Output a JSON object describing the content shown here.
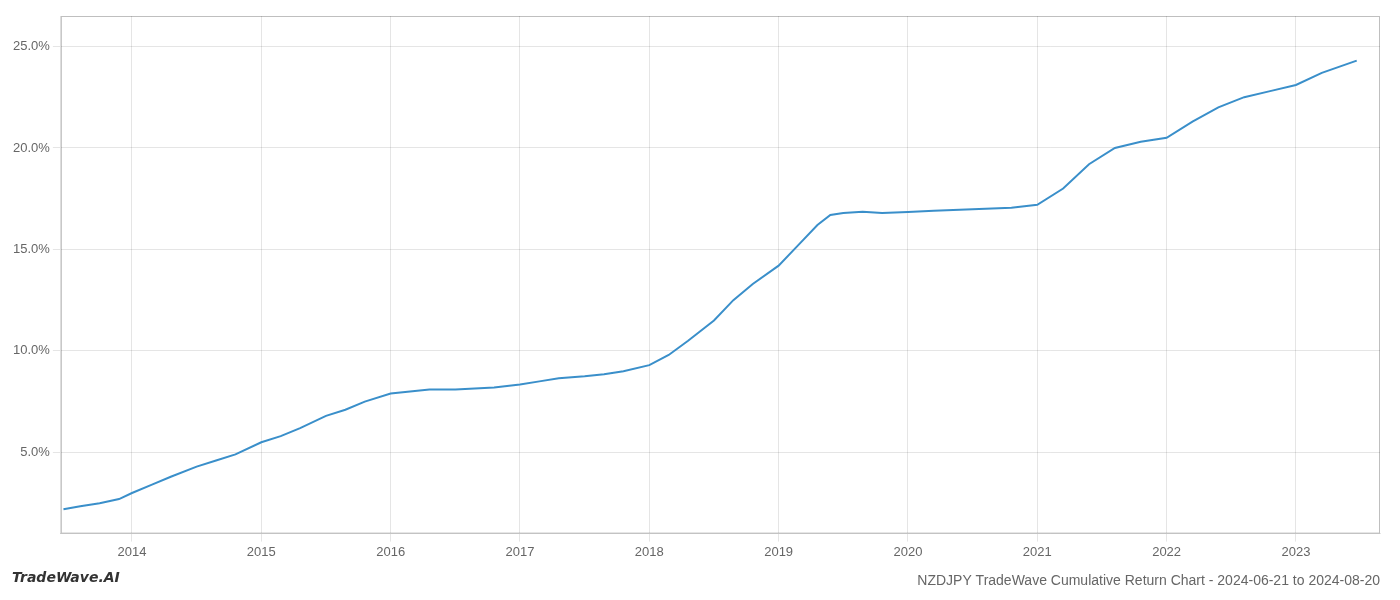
{
  "chart_data": {
    "type": "line",
    "title": "NZDJPY TradeWave Cumulative Return Chart - 2024-06-21 to 2024-08-20",
    "annotations": [
      "TradeWave.AI"
    ],
    "color": "#3a8fca",
    "x": [
      2013.47,
      2013.6,
      2013.75,
      2013.9,
      2014.0,
      2014.15,
      2014.3,
      2014.5,
      2014.65,
      2014.8,
      2015.0,
      2015.15,
      2015.3,
      2015.5,
      2015.65,
      2015.8,
      2016.0,
      2016.15,
      2016.3,
      2016.5,
      2016.65,
      2016.8,
      2017.0,
      2017.15,
      2017.3,
      2017.5,
      2017.65,
      2017.8,
      2018.0,
      2018.15,
      2018.3,
      2018.5,
      2018.65,
      2018.8,
      2019.0,
      2019.15,
      2019.3,
      2019.4,
      2019.5,
      2019.65,
      2019.8,
      2020.0,
      2020.2,
      2020.4,
      2020.6,
      2020.8,
      2021.0,
      2021.2,
      2021.4,
      2021.6,
      2021.8,
      2022.0,
      2022.2,
      2022.4,
      2022.6,
      2022.8,
      2023.0,
      2023.2,
      2023.47
    ],
    "values": [
      2.2,
      2.35,
      2.5,
      2.7,
      3.0,
      3.4,
      3.8,
      4.3,
      4.6,
      4.9,
      5.5,
      5.8,
      6.2,
      6.8,
      7.1,
      7.5,
      7.9,
      8.0,
      8.1,
      8.1,
      8.15,
      8.2,
      8.35,
      8.5,
      8.65,
      8.75,
      8.85,
      9.0,
      9.3,
      9.8,
      10.5,
      11.5,
      12.5,
      13.3,
      14.2,
      15.2,
      16.2,
      16.7,
      16.8,
      16.85,
      16.8,
      16.85,
      16.9,
      16.95,
      17.0,
      17.05,
      17.2,
      18.0,
      19.2,
      20.0,
      20.3,
      20.5,
      21.3,
      22.0,
      22.5,
      22.8,
      23.1,
      23.7,
      24.3
    ],
    "xlim": [
      2013.45,
      2023.65
    ],
    "xticks": [
      2014,
      2015,
      2016,
      2017,
      2018,
      2019,
      2020,
      2021,
      2022,
      2023
    ],
    "ylim": [
      1.0,
      26.5
    ],
    "yticks": [
      {
        "value": 5.0,
        "label": "5.0%"
      },
      {
        "value": 10.0,
        "label": "10.0%"
      },
      {
        "value": 15.0,
        "label": "15.0%"
      },
      {
        "value": 20.0,
        "label": "20.0%"
      },
      {
        "value": 25.0,
        "label": "25.0%"
      }
    ],
    "grid": true
  }
}
